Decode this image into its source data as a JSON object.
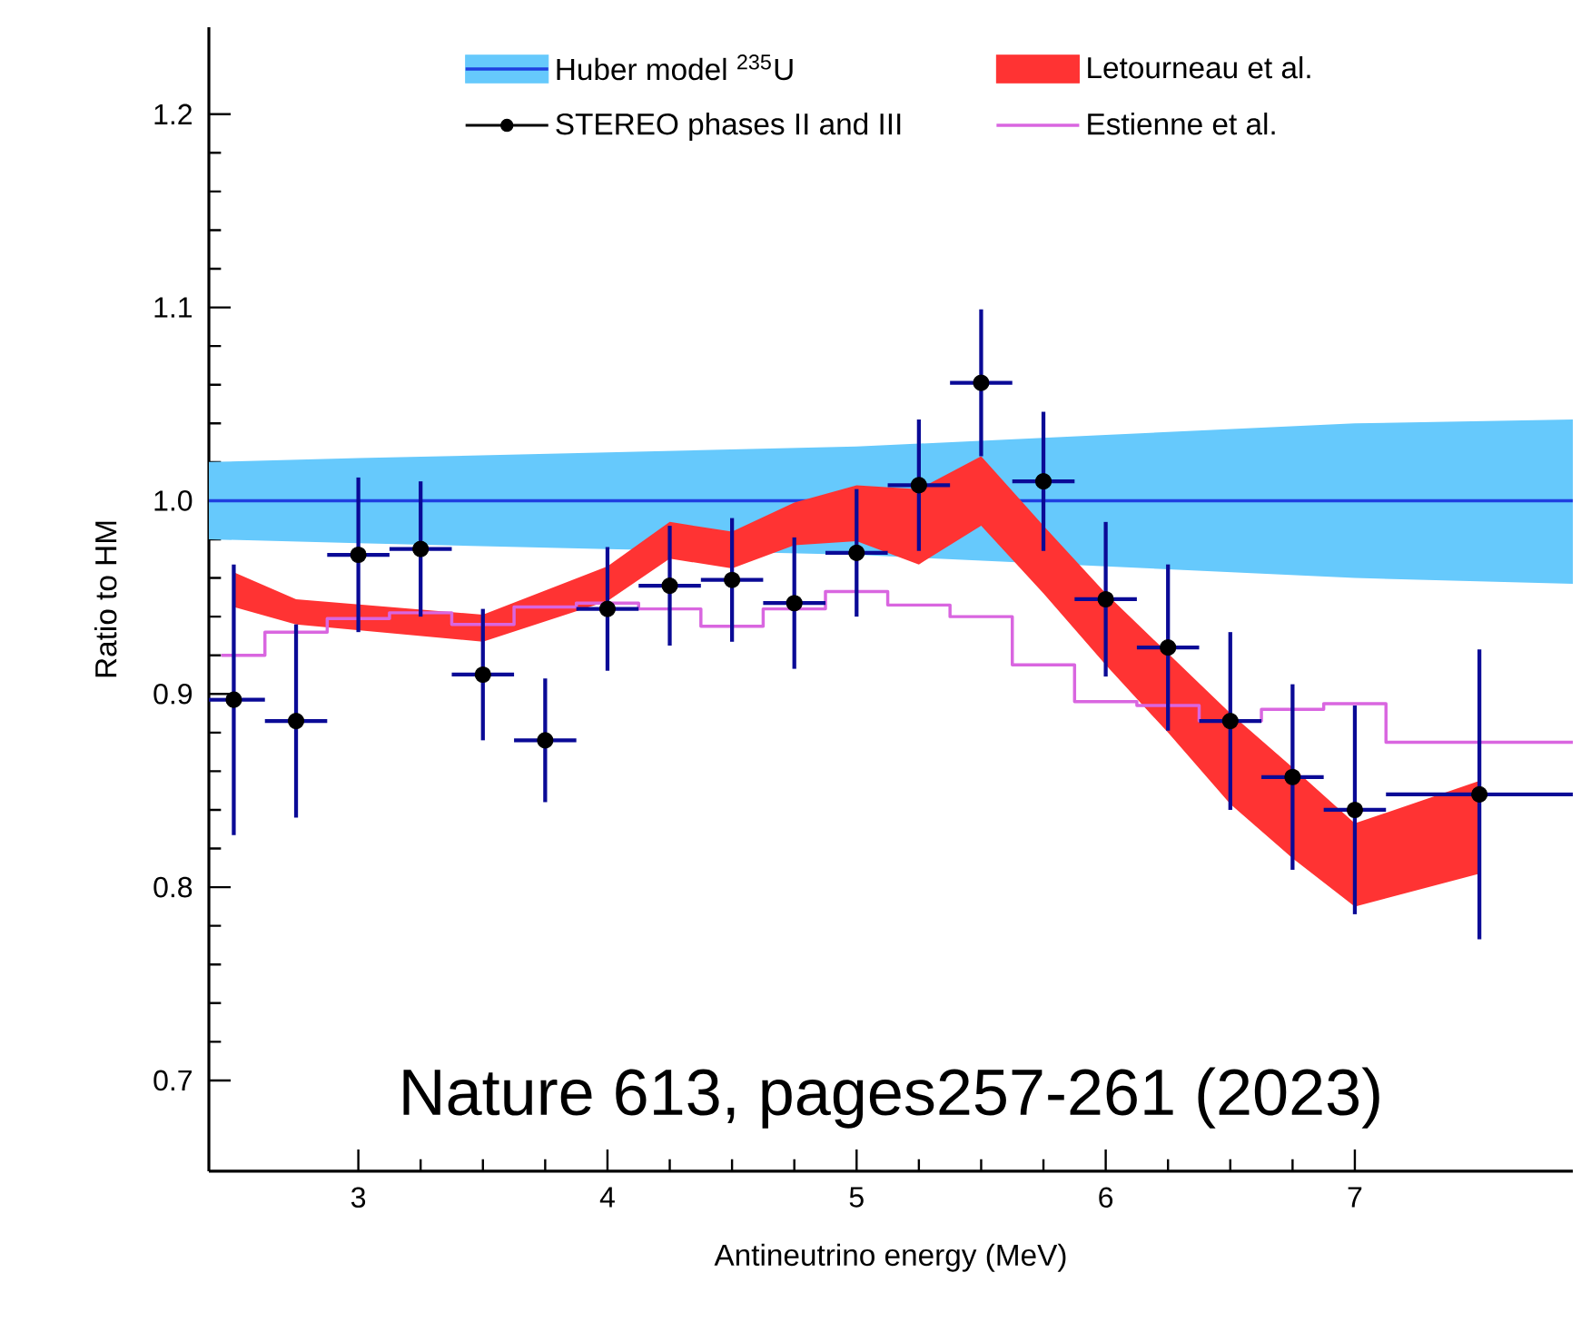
{
  "chart_data": {
    "type": "scatter",
    "xlabel": "Antineutrino energy (MeV)",
    "ylabel": "Ratio to HM",
    "xlim": [
      2.4,
      7.875
    ],
    "ylim": [
      0.653,
      1.245
    ],
    "xticks": [
      3,
      4,
      5,
      6,
      7
    ],
    "yticks": [
      0.7,
      0.8,
      0.9,
      {
        "value": 1.0,
        "label": "1.0"
      },
      1.1,
      1.2
    ],
    "grid": false,
    "legend": "top",
    "annotations": [
      "Nature 613, pages257-261 (2023)"
    ],
    "series": [
      {
        "type": "line",
        "color": "#66c9fc",
        "x": [
          2.4,
          3,
          4,
          5,
          6,
          7,
          7.875
        ],
        "values": [
          null,
          null,
          null,
          null,
          null,
          null,
          null
        ],
        "upper": [
          1.02,
          1.022,
          1.025,
          1.028,
          1.034,
          1.04,
          1.042
        ],
        "lower": [
          0.98,
          0.978,
          0.975,
          0.972,
          0.966,
          0.96,
          0.957
        ]
      },
      {
        "type": "line",
        "name": "Huber model $^{235}$U",
        "color": "#1f3fe0",
        "x": [
          2.4,
          4.6,
          5.9,
          7.875
        ],
        "values": [
          1.0,
          1.0,
          1.0,
          1.0
        ]
      },
      {
        "type": "line",
        "name": "Letourneau et al.",
        "color": "#ff3333",
        "x": [
          2.5,
          2.75,
          3.5,
          4.0,
          4.25,
          4.5,
          4.75,
          5.0,
          5.25,
          5.5,
          5.75,
          6.0,
          6.25,
          6.5,
          6.75,
          7.0,
          7.5
        ],
        "values": [
          null,
          null,
          null,
          null,
          null,
          null,
          null,
          null,
          null,
          null,
          null,
          null,
          null,
          null,
          null,
          null,
          null
        ],
        "upper": [
          0.963,
          0.949,
          0.941,
          0.966,
          0.989,
          0.984,
          0.999,
          1.008,
          1.006,
          1.023,
          0.987,
          0.952,
          0.921,
          0.89,
          0.862,
          0.833,
          0.855
        ],
        "lower": [
          0.945,
          0.936,
          0.927,
          0.948,
          0.97,
          0.965,
          0.977,
          0.979,
          0.967,
          0.987,
          0.952,
          0.915,
          0.88,
          0.843,
          0.815,
          0.79,
          0.807
        ]
      },
      {
        "name": "STEREO phases II and III",
        "color": "#000000",
        "marker": "circle",
        "x": [
          2.5,
          2.75,
          3.0,
          3.25,
          3.5,
          3.75,
          4.0,
          4.25,
          4.5,
          4.75,
          5.0,
          5.25,
          5.5,
          5.75,
          6.0,
          6.25,
          6.5,
          6.75,
          7.0,
          7.5
        ],
        "values": [
          0.897,
          0.886,
          0.972,
          0.975,
          0.91,
          0.876,
          0.944,
          0.956,
          0.959,
          0.947,
          0.973,
          1.008,
          1.061,
          1.01,
          0.949,
          0.924,
          0.886,
          0.857,
          0.84,
          0.848
        ],
        "errors": [
          0.07,
          0.05,
          0.04,
          0.035,
          0.034,
          0.032,
          0.032,
          0.031,
          0.032,
          0.034,
          0.033,
          0.034,
          0.038,
          0.036,
          0.04,
          0.043,
          0.046,
          0.048,
          0.054,
          0.075
        ],
        "xerrors": [
          0.125,
          0.125,
          0.125,
          0.125,
          0.125,
          0.125,
          0.125,
          0.125,
          0.125,
          0.125,
          0.125,
          0.125,
          0.125,
          0.125,
          0.125,
          0.125,
          0.125,
          0.125,
          0.125,
          0.375
        ]
      },
      {
        "type": "step",
        "name": "Estienne et al.",
        "color": "#d966e0",
        "x": [
          2.45,
          2.625,
          2.875,
          3.125,
          3.375,
          3.625,
          3.875,
          4.125,
          4.375,
          4.625,
          4.875,
          5.125,
          5.375,
          5.625,
          5.875,
          6.125,
          6.375,
          6.625,
          6.875,
          7.125,
          7.875
        ],
        "values": [
          0.92,
          0.932,
          0.939,
          0.942,
          0.936,
          0.945,
          0.947,
          0.944,
          0.935,
          0.944,
          0.953,
          0.946,
          0.94,
          0.915,
          0.896,
          0.894,
          0.886,
          0.892,
          0.895,
          0.875,
          0.875
        ]
      }
    ]
  }
}
